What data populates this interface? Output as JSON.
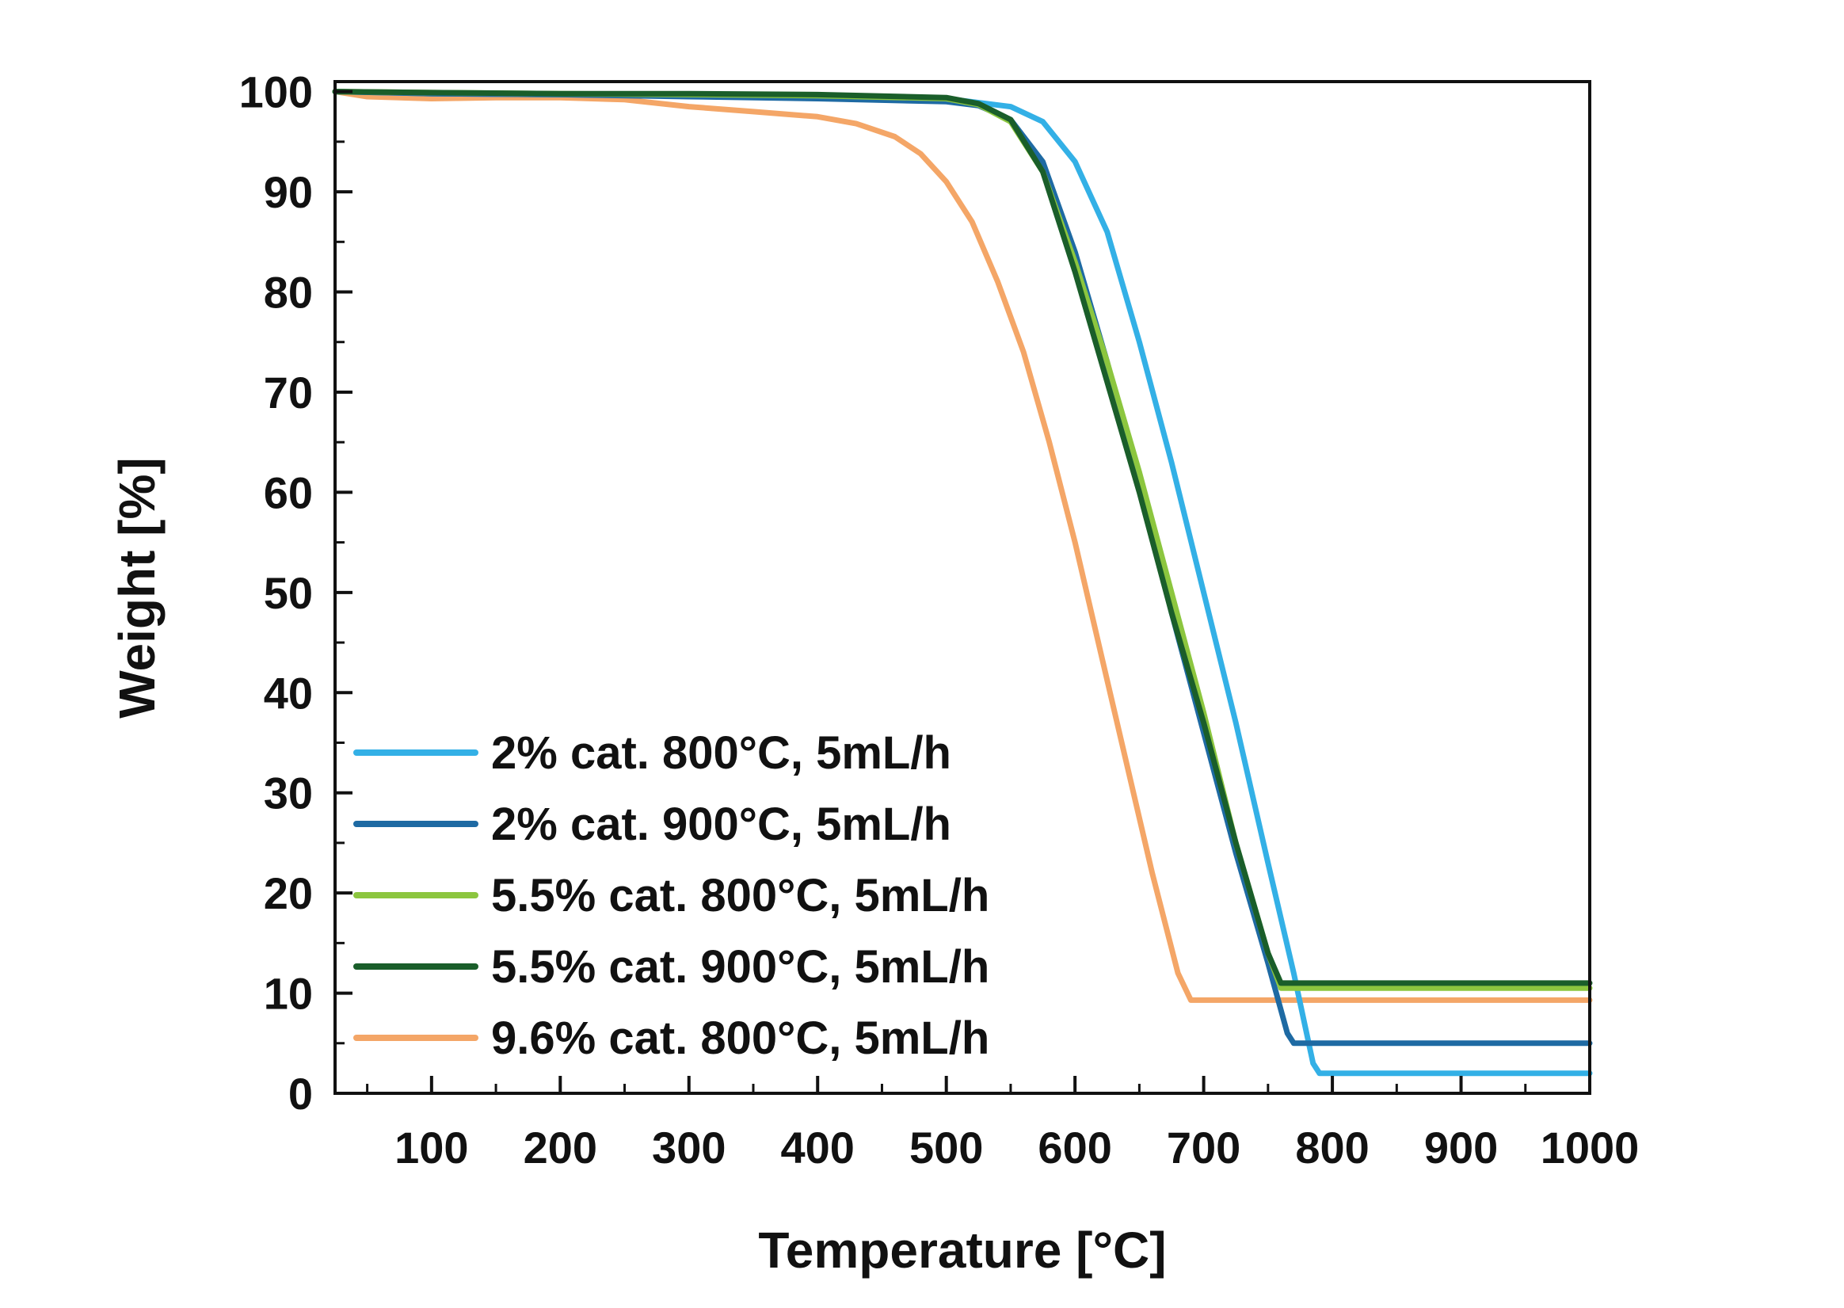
{
  "chart_data": {
    "type": "line",
    "title": "",
    "xlabel": "Temperature [°C]",
    "ylabel": "Weight [%]",
    "xlim": [
      25,
      1000
    ],
    "ylim": [
      0,
      101
    ],
    "x_ticks": [
      100,
      200,
      300,
      400,
      500,
      600,
      700,
      800,
      900,
      1000
    ],
    "y_ticks": [
      0,
      10,
      20,
      30,
      40,
      50,
      60,
      70,
      80,
      90,
      100
    ],
    "grid": false,
    "legend_position": "lower-left",
    "series": [
      {
        "name": "2% cat. 800°C, 5mL/h",
        "color": "#33b0e6",
        "x": [
          25,
          100,
          200,
          300,
          400,
          500,
          550,
          575,
          600,
          625,
          650,
          675,
          700,
          725,
          750,
          770,
          785,
          790,
          800,
          900,
          1000
        ],
        "y": [
          100,
          99.8,
          99.7,
          99.6,
          99.5,
          99.3,
          98.5,
          97,
          93,
          86,
          75,
          63,
          50,
          37,
          23,
          12,
          3,
          2,
          2,
          2,
          2
        ]
      },
      {
        "name": "2% cat. 900°C, 5mL/h",
        "color": "#1e6aa3",
        "x": [
          25,
          100,
          200,
          300,
          400,
          500,
          525,
          550,
          575,
          600,
          625,
          650,
          675,
          700,
          725,
          750,
          765,
          770,
          780,
          900,
          1000
        ],
        "y": [
          100,
          99.8,
          99.7,
          99.5,
          99.3,
          99,
          98.6,
          97.2,
          93,
          84,
          73,
          61,
          48,
          36,
          24,
          13,
          6,
          5,
          5,
          5,
          5
        ]
      },
      {
        "name": "5.5% cat. 800°C, 5mL/h",
        "color": "#8cc63f",
        "x": [
          25,
          100,
          200,
          300,
          400,
          500,
          525,
          550,
          575,
          600,
          625,
          650,
          675,
          700,
          725,
          750,
          760,
          800,
          900,
          1000
        ],
        "y": [
          100,
          99.9,
          99.8,
          99.7,
          99.6,
          99.3,
          98.7,
          97,
          92,
          83,
          73,
          62,
          50,
          38,
          25,
          14,
          10.5,
          10.5,
          10.5,
          10.5
        ]
      },
      {
        "name": "5.5% cat. 900°C, 5mL/h",
        "color": "#1a5e2a",
        "x": [
          25,
          100,
          200,
          300,
          400,
          500,
          525,
          550,
          575,
          600,
          625,
          650,
          675,
          700,
          725,
          750,
          760,
          800,
          900,
          1000
        ],
        "y": [
          100,
          99.9,
          99.8,
          99.8,
          99.7,
          99.4,
          98.8,
          97.2,
          92,
          82,
          71,
          60,
          48,
          37,
          25,
          14,
          11,
          11,
          11,
          11
        ]
      },
      {
        "name": "9.6% cat. 800°C, 5mL/h",
        "color": "#f4a667",
        "x": [
          25,
          50,
          100,
          150,
          200,
          250,
          300,
          350,
          400,
          430,
          460,
          480,
          500,
          520,
          540,
          560,
          580,
          600,
          620,
          640,
          660,
          680,
          690,
          700,
          800,
          900,
          1000
        ],
        "y": [
          100,
          99.5,
          99.3,
          99.4,
          99.4,
          99.2,
          98.5,
          98,
          97.5,
          96.8,
          95.5,
          93.8,
          91,
          87,
          81,
          74,
          65,
          55,
          44,
          33,
          22,
          12,
          9.3,
          9.3,
          9.3,
          9.3,
          9.3
        ]
      }
    ]
  }
}
